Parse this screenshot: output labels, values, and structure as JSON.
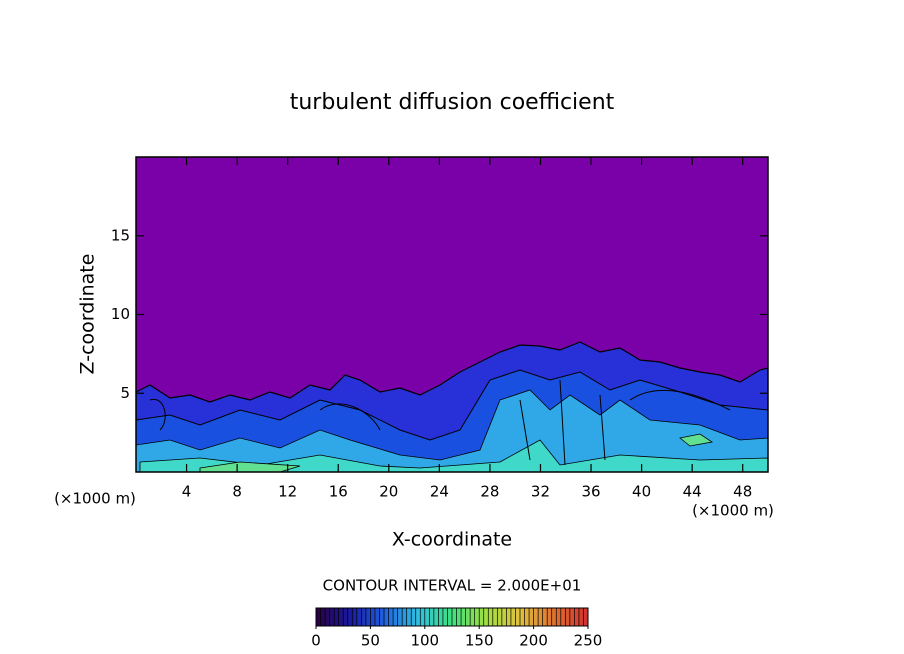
{
  "chart_data": {
    "type": "contour",
    "title": "turbulent diffusion coefficient",
    "x_label": "X-coordinate",
    "y_label": "Z-coordinate",
    "x_unit_label": "(×1000 m)",
    "y_unit_label": "(×1000 m)",
    "xlim": [
      0,
      50
    ],
    "xticks": [
      4,
      8,
      12,
      16,
      20,
      24,
      28,
      32,
      36,
      40,
      44,
      48
    ],
    "ylim": [
      0,
      20
    ],
    "yticks": [
      5,
      10,
      15
    ],
    "colorbar": {
      "title": "CONTOUR INTERVAL = 2.000E+01",
      "lim": [
        0,
        250
      ],
      "ticks": [
        0,
        50,
        100,
        150,
        200,
        250
      ],
      "colors": [
        "#2a0040",
        "#1a1aa0",
        "#2060e0",
        "#30c0e0",
        "#40e080",
        "#a0e040",
        "#e0c040",
        "#e07030",
        "#d03030"
      ]
    }
  }
}
